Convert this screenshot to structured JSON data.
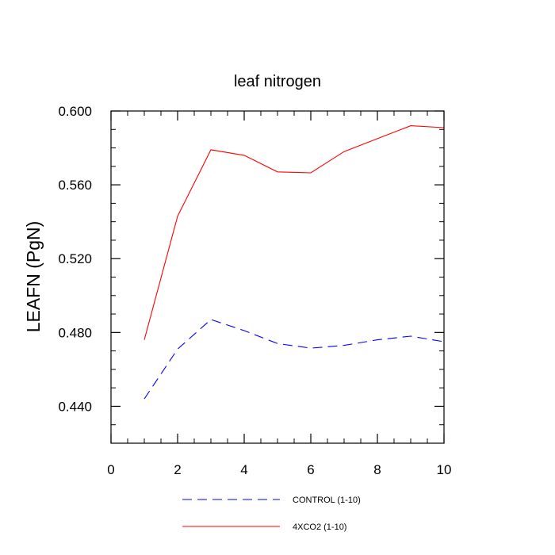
{
  "chart_data": {
    "type": "line",
    "title": "leaf nitrogen",
    "xlabel": "",
    "ylabel": "LEAFN  (PgN)",
    "xlim": [
      0,
      10
    ],
    "ylim": [
      0.42,
      0.6
    ],
    "x_ticks": [
      0,
      2,
      4,
      6,
      8,
      10
    ],
    "x_tick_labels": [
      "0",
      "2",
      "4",
      "6",
      "8",
      "10"
    ],
    "y_ticks": [
      0.44,
      0.48,
      0.52,
      0.56,
      0.6
    ],
    "y_tick_labels": [
      "0.440",
      "0.480",
      "0.520",
      "0.560",
      "0.600"
    ],
    "x_minor_step": 0.5,
    "y_minor_step": 0.01,
    "grid": false,
    "legend_position": "bottom",
    "x": [
      1,
      2,
      3,
      4,
      5,
      6,
      7,
      8,
      9,
      10
    ],
    "series": [
      {
        "name": "CONTROL (1-10)",
        "color": "#0000ff",
        "dash": "dashed",
        "values": [
          0.444,
          0.471,
          0.487,
          0.481,
          0.474,
          0.4715,
          0.473,
          0.476,
          0.478,
          0.475
        ]
      },
      {
        "name": "4XCO2 (1-10)",
        "color": "#ff0000",
        "dash": "solid",
        "values": [
          0.476,
          0.543,
          0.579,
          0.576,
          0.567,
          0.5665,
          0.578,
          0.585,
          0.592,
          0.591
        ]
      }
    ]
  }
}
